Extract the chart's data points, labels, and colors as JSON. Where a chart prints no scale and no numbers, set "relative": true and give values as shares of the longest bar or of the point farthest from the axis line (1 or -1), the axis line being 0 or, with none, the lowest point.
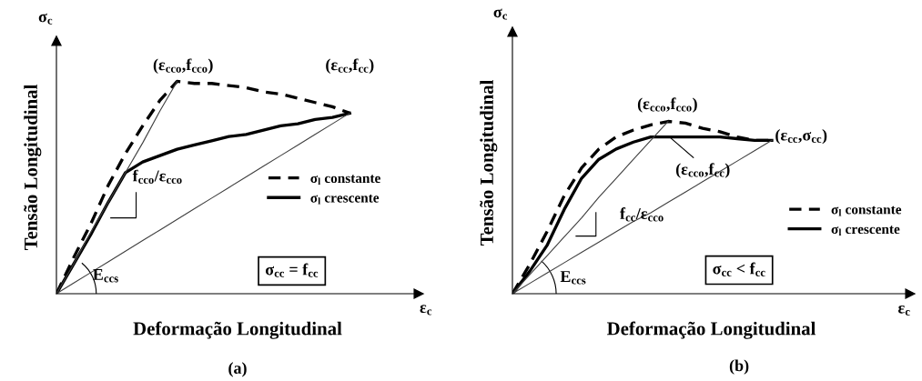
{
  "chart_data": [
    {
      "type": "line",
      "relative": true,
      "xlabel": "Deformação Longitudinal",
      "ylabel": "Tensão Longitudinal",
      "legend": "right",
      "tick_labels": false,
      "grid": false,
      "categories": [
        null,
        null,
        null,
        null,
        null,
        null,
        null,
        null,
        null,
        null,
        null,
        null,
        null,
        null,
        null,
        null,
        null,
        null,
        null,
        null,
        null,
        null
      ],
      "series": [
        {
          "name": "σ$_{l}$ constante",
          "color": "#000000",
          "line_style": "dashed",
          "values": [
            0,
            0.17,
            0.33,
            0.51,
            0.66,
            0.79,
            0.91,
            1.0,
            0.99,
            0.99,
            0.98,
            0.97,
            0.95,
            0.94,
            0.92,
            0.9,
            0.88,
            0.85,
            null,
            null,
            null,
            null
          ]
        },
        {
          "name": "σ$_{l}$ crescente",
          "color": "#000000",
          "line_style": "solid",
          "values": [
            0,
            0.14,
            0.28,
            0.43,
            0.57,
            0.62,
            0.65,
            0.68,
            0.7,
            0.72,
            0.74,
            0.75,
            0.77,
            0.79,
            0.8,
            0.82,
            0.83,
            0.85,
            null,
            null,
            null,
            null
          ]
        },
        {
          "color": "#404040",
          "line_style": "solid",
          "values": [
            0,
            0.14,
            0.29,
            0.43,
            0.57,
            0.71,
            0.86,
            1.0,
            null,
            null,
            null,
            null,
            null,
            null,
            null,
            null,
            null,
            null,
            null,
            null,
            null,
            null
          ]
        },
        {
          "color": "#404040",
          "line_style": "solid",
          "values": [
            0,
            0.05,
            0.1,
            0.15,
            0.2,
            0.25,
            0.3,
            0.35,
            0.4,
            0.45,
            0.5,
            0.55,
            0.6,
            0.65,
            0.7,
            0.75,
            0.8,
            0.85,
            null,
            null,
            null,
            null
          ]
        }
      ],
      "annotations": [
        "(ε$_{cco}$,f$_{cco}$)",
        "(ε$_{cc}$,f$_{cc}$)",
        "f$_{cco}$/ε$_{cco}$",
        "E$_{ccs}$",
        "σ$_{cc}$ = f$_{cc}$",
        "σ$_{c}$",
        "ε$_{c}$",
        "(a)"
      ]
    },
    {
      "type": "line",
      "relative": true,
      "xlabel": "Deformação Longitudinal",
      "ylabel": "Tensão Longitudinal",
      "legend": "right",
      "tick_labels": false,
      "grid": false,
      "categories": [
        null,
        null,
        null,
        null,
        null,
        null,
        null,
        null,
        null,
        null,
        null,
        null,
        null,
        null,
        null,
        null,
        null,
        null,
        null,
        null,
        null,
        null,
        null,
        null
      ],
      "series": [
        {
          "name": "σ$_{l}$ constante",
          "color": "#000000",
          "line_style": "dashed",
          "values": [
            0,
            0.17,
            0.36,
            0.57,
            0.73,
            0.84,
            0.91,
            0.95,
            0.98,
            1.0,
            0.99,
            0.96,
            0.94,
            0.91,
            0.89,
            0.89,
            null,
            null,
            null,
            null,
            null,
            null,
            null,
            null
          ]
        },
        {
          "name": "σ$_{l}$ crescente",
          "color": "#000000",
          "line_style": "solid",
          "values": [
            0,
            0.13,
            0.28,
            0.49,
            0.67,
            0.78,
            0.84,
            0.88,
            0.91,
            0.91,
            0.91,
            0.91,
            0.91,
            0.9,
            0.89,
            0.89,
            null,
            null,
            null,
            null,
            null,
            null,
            null,
            null
          ]
        },
        {
          "color": "#404040",
          "line_style": "solid",
          "values": [
            0,
            0.11,
            0.22,
            0.33,
            0.44,
            0.56,
            0.67,
            0.78,
            0.89,
            1.0,
            null,
            null,
            null,
            null,
            null,
            null,
            null,
            null,
            null,
            null,
            null,
            null,
            null,
            null
          ]
        },
        {
          "color": "#404040",
          "line_style": "solid",
          "values": [
            0,
            0.06,
            0.12,
            0.18,
            0.24,
            0.3,
            0.36,
            0.42,
            0.47,
            0.53,
            0.59,
            0.65,
            0.71,
            0.77,
            0.83,
            0.89,
            null,
            null,
            null,
            null,
            null,
            null,
            null,
            null
          ]
        }
      ],
      "annotations": [
        "(ε$_{cco}$,f$_{cco}$)",
        "(ε$_{cc}$,σ$_{cc}$)",
        "(ε$_{cco}$,f$_{cc}$)",
        "f$_{cc}$/ε$_{cco}$",
        "E$_{ccs}$",
        "σ$_{cc}$ < f$_{cc}$",
        "σ$_{c}$",
        "ε$_{c}$",
        "(b)"
      ]
    }
  ]
}
